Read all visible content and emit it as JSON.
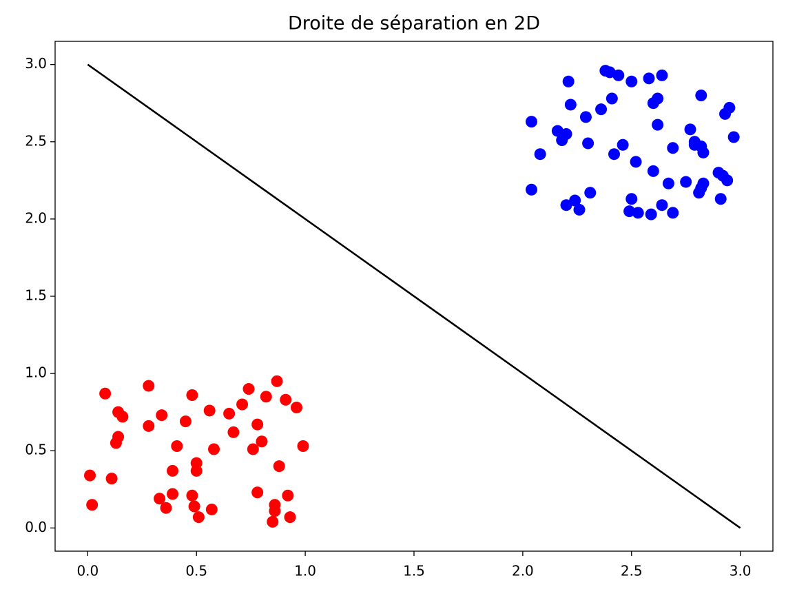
{
  "chart_data": {
    "type": "scatter",
    "title": "Droite de séparation en 2D",
    "xlim": [
      -0.15,
      3.15
    ],
    "ylim": [
      -0.15,
      3.15
    ],
    "xticks": [
      {
        "value": 0,
        "label": "0.0"
      },
      0.5,
      {
        "value": 1,
        "label": "1.0"
      },
      1.5,
      {
        "value": 2,
        "label": "2.0"
      },
      2.5,
      {
        "value": 3,
        "label": "3.0"
      }
    ],
    "yticks": [
      {
        "value": 0,
        "label": "0.0"
      },
      0.5,
      {
        "value": 1,
        "label": "1.0"
      },
      1.5,
      {
        "value": 2,
        "label": "2.0"
      },
      2.5,
      {
        "value": 3,
        "label": "3.0"
      }
    ],
    "series": [
      {
        "type": "scatter",
        "color": "#ff0000",
        "x": [
          0.01,
          0.02,
          0.08,
          0.11,
          0.14,
          0.16,
          0.14,
          0.13,
          0.28,
          0.28,
          0.34,
          0.33,
          0.36,
          0.39,
          0.39,
          0.41,
          0.45,
          0.48,
          0.48,
          0.49,
          0.5,
          0.5,
          0.51,
          0.56,
          0.58,
          0.57,
          0.65,
          0.67,
          0.71,
          0.74,
          0.76,
          0.78,
          0.78,
          0.8,
          0.82,
          0.85,
          0.86,
          0.86,
          0.87,
          0.88,
          0.91,
          0.92,
          0.93,
          0.96,
          0.99
        ],
        "values": [
          0.34,
          0.15,
          0.87,
          0.32,
          0.75,
          0.72,
          0.59,
          0.55,
          0.92,
          0.66,
          0.73,
          0.19,
          0.13,
          0.37,
          0.22,
          0.53,
          0.69,
          0.86,
          0.21,
          0.14,
          0.37,
          0.42,
          0.07,
          0.76,
          0.51,
          0.12,
          0.74,
          0.62,
          0.8,
          0.9,
          0.51,
          0.67,
          0.23,
          0.56,
          0.85,
          0.04,
          0.15,
          0.11,
          0.95,
          0.4,
          0.83,
          0.21,
          0.07,
          0.78,
          0.53
        ]
      },
      {
        "type": "scatter",
        "color": "#0000ff",
        "x": [
          2.04,
          2.04,
          2.08,
          2.16,
          2.18,
          2.2,
          2.21,
          2.2,
          2.22,
          2.24,
          2.26,
          2.29,
          2.3,
          2.31,
          2.36,
          2.38,
          2.4,
          2.41,
          2.42,
          2.44,
          2.46,
          2.5,
          2.5,
          2.49,
          2.52,
          2.53,
          2.58,
          2.59,
          2.6,
          2.6,
          2.62,
          2.62,
          2.64,
          2.64,
          2.67,
          2.69,
          2.69,
          2.75,
          2.77,
          2.79,
          2.79,
          2.82,
          2.82,
          2.83,
          2.83,
          2.82,
          2.81,
          2.9,
          2.92,
          2.91,
          2.93,
          2.95,
          2.94,
          2.97
        ],
        "values": [
          2.63,
          2.19,
          2.42,
          2.57,
          2.51,
          2.55,
          2.89,
          2.09,
          2.74,
          2.12,
          2.06,
          2.66,
          2.49,
          2.17,
          2.71,
          2.96,
          2.95,
          2.78,
          2.42,
          2.93,
          2.48,
          2.89,
          2.13,
          2.05,
          2.37,
          2.04,
          2.91,
          2.03,
          2.31,
          2.75,
          2.78,
          2.61,
          2.93,
          2.09,
          2.23,
          2.46,
          2.04,
          2.24,
          2.58,
          2.5,
          2.48,
          2.8,
          2.47,
          2.43,
          2.23,
          2.2,
          2.17,
          2.3,
          2.28,
          2.13,
          2.68,
          2.72,
          2.25,
          2.53
        ]
      },
      {
        "type": "line",
        "color": "#000000",
        "x": [
          0,
          3
        ],
        "values": [
          3,
          0
        ]
      }
    ]
  }
}
